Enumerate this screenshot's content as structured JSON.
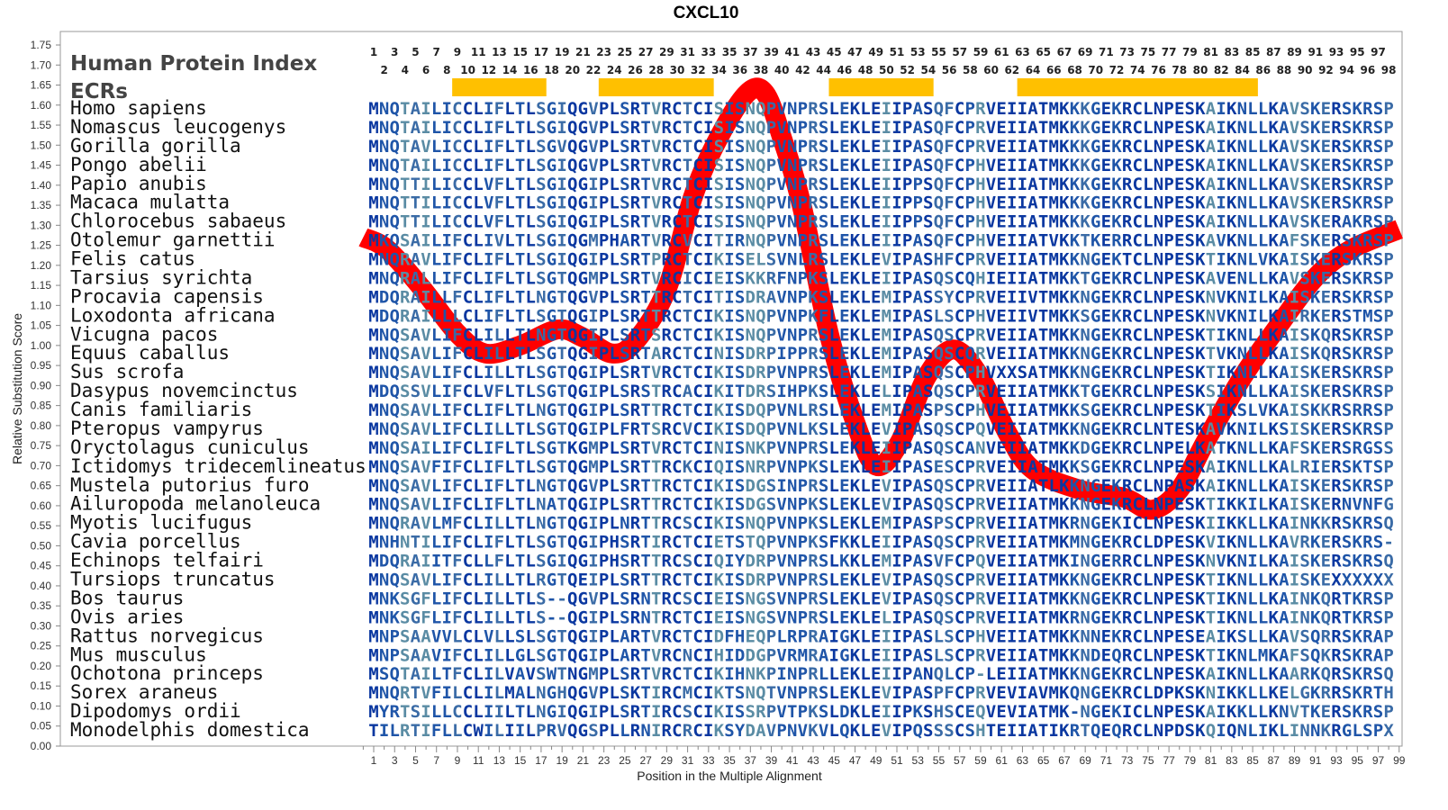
{
  "chart_data": {
    "type": "line",
    "title": "CXCL10",
    "xlabel": "Position in the Multiple Alignment",
    "ylabel": "Relative Substitution Score",
    "ylim": [
      0,
      1.75
    ],
    "xlim": [
      0,
      99
    ],
    "y_ticks": [
      "0.00",
      "0.05",
      "0.10",
      "0.15",
      "0.20",
      "0.25",
      "0.30",
      "0.35",
      "0.40",
      "0.45",
      "0.50",
      "0.55",
      "0.60",
      "0.65",
      "0.70",
      "0.75",
      "0.80",
      "0.85",
      "0.90",
      "0.95",
      "1.00",
      "1.05",
      "1.10",
      "1.15",
      "1.20",
      "1.25",
      "1.30",
      "1.35",
      "1.40",
      "1.45",
      "1.50",
      "1.55",
      "1.60",
      "1.65",
      "1.70",
      "1.75"
    ],
    "x_ticks_bottom": [
      1,
      3,
      5,
      7,
      9,
      11,
      13,
      15,
      17,
      19,
      21,
      23,
      25,
      27,
      29,
      31,
      33,
      35,
      37,
      39,
      41,
      43,
      45,
      47,
      49,
      51,
      53,
      55,
      57,
      59,
      61,
      63,
      65,
      67,
      69,
      71,
      73,
      75,
      77,
      79,
      81,
      83,
      85,
      87,
      89,
      91,
      93,
      95,
      97,
      99
    ],
    "x_ticks_top_odd": [
      1,
      3,
      5,
      7,
      9,
      11,
      13,
      15,
      17,
      19,
      21,
      23,
      25,
      27,
      29,
      31,
      33,
      35,
      37,
      39,
      41,
      43,
      45,
      47,
      49,
      51,
      53,
      55,
      57,
      59,
      61,
      63,
      65,
      67,
      69,
      71,
      73,
      75,
      77,
      79,
      81,
      83,
      85,
      87,
      89,
      91,
      93,
      95,
      97
    ],
    "x_ticks_top_even": [
      2,
      4,
      6,
      8,
      10,
      12,
      14,
      16,
      18,
      20,
      22,
      24,
      26,
      28,
      30,
      32,
      34,
      36,
      38,
      40,
      42,
      44,
      46,
      48,
      50,
      52,
      54,
      56,
      58,
      60,
      62,
      64,
      66,
      68,
      70,
      72,
      74,
      76,
      78,
      80,
      82,
      84,
      86,
      88,
      90,
      92,
      94,
      96,
      98
    ],
    "series": [
      {
        "name": "Relative Substitution Score",
        "color": "#ff0000",
        "x": [
          0,
          2.3,
          5.7,
          9,
          11.7,
          15,
          18.6,
          21,
          23.8,
          26,
          29,
          31.5,
          34,
          36.7,
          38.4,
          40,
          41.9,
          44.5,
          47,
          49,
          51.3,
          53.8,
          56.4,
          59,
          61.6,
          64,
          68.5,
          72.7,
          75.4,
          78,
          80.5,
          84,
          87.5,
          91,
          94.4,
          99
        ],
        "y": [
          1.27,
          1.24,
          1.14,
          1.03,
          0.98,
          1.0,
          1.04,
          1.02,
          0.98,
          1.01,
          1.14,
          1.37,
          1.52,
          1.63,
          1.63,
          1.52,
          1.35,
          1.03,
          0.81,
          0.7,
          0.76,
          0.92,
          0.99,
          0.92,
          0.78,
          0.69,
          0.64,
          0.62,
          0.59,
          0.64,
          0.76,
          0.92,
          1.05,
          1.17,
          1.24,
          1.29
        ]
      }
    ],
    "ecr_color": "#ffc000",
    "ecrs": [
      [
        9,
        17
      ],
      [
        23,
        33
      ],
      [
        45,
        54
      ],
      [
        63,
        85
      ]
    ],
    "grid": false
  },
  "labels": {
    "human_protein_index": "Human Protein Index",
    "ecrs": "ECRs"
  },
  "alignment": [
    {
      "species": "Homo sapiens",
      "seq": "MNQTAILICCLIFLTLSGIQGVPLSRTVRCTCISISNQPVNPRSLEKLEIIPASQFCPRVEIIATMKKKGEKRCLNPESKAIKNLLKAVSKERSKRSP"
    },
    {
      "species": "Nomascus leucogenys",
      "seq": "MNQTAILICCLIFLTLSGIQGVPLSRTVRCTCISISNQPVNPRSLEKLEIIPASQFCPRVEIIATMKKKGEKRCLNPESKAIKNLLKAVSKERSKRSP"
    },
    {
      "species": "Gorilla gorilla",
      "seq": "MNQTAVLICCLIFLTLSGVQGVPLSRTVRCTCISISNQPVNPRSLEKLEIIPASQFCPRVEIIATMKKKGEKRCLNPESKAIKNLLKAVSKERSKRSP"
    },
    {
      "species": "Pongo abelii",
      "seq": "MNQTAILICCLIFLTLSGIQGVPLSRTVRCTCISISNQPVNPRSLEKLEIIPASQFCPHVEIIATMKKKGEKRCLNPESKAIKNLLKAVSKERSKRSP"
    },
    {
      "species": "Papio anubis",
      "seq": "MNQTTILICCLVFLTLSGIQGIPLSRTVRCTCISISNQPVNPRSLEKLEIIPPSQFCPHVEIIATMKKKGEKRCLNPESKAIKNLLKAVSKERSKRSP"
    },
    {
      "species": "Macaca mulatta",
      "seq": "MNQTTILICCLVFLTLSGIQGIPLSRTVRCTCISISNQPVNPRSLEKLEIIPPSQFCPHVEIIATMKKKGEKRCLNPESKAIKNLLKAVSKERSKRSP"
    },
    {
      "species": "Chlorocebus sabaeus",
      "seq": "MNQTTILICCLVFLTLSGIQGIPLSRTVRCTCISISNQPVNPRSLEKLEIIPPSQFCPHVEIIATMKKKGEKRCLNPESKAIKNLLKAVSKERAKRSP"
    },
    {
      "species": "Otolemur garnettii",
      "seq": "MKQSAILIFCLIVLTLSGIQGMPHARTVRCVCITIRNQPVNPRSLEKLEIIPASQFCPHVEIIATVKKTKERRCLNPESKAVKNLLKAFSKERSKRSP"
    },
    {
      "species": "Felis catus",
      "seq": "MNQRAVLIFCLIFLTLSGIQGIPLSRTPRCTCIKISELSVNLRSLEKLEVIPASHFCPRVEIIATMKKNGEKTCLNPESKTIKNLVKAISKERSKRSP"
    },
    {
      "species": "Tarsius syrichta",
      "seq": "MNQRALLIFCLIFLTLSGTQGMPLSRTVRCICIEISKKRFNPKSLEKLEIIPASQSCQHIEIIATMKKTGEKRCLNPESKAVENLLKAVSKERSKRSP"
    },
    {
      "species": "Procavia capensis",
      "seq": "MDQRAILLFCLIFLTLNGTQGVPLSRTTRCTCITISDRAVNPKSLEKLEMIPASSYCPRVEIIVTMKKNGEKRCLNPESKNVKNILKAISKERSKRSP"
    },
    {
      "species": "Loxodonta africana",
      "seq": "MDQRAILLLCLIFLTLSGTQGIPLSRTTRCTCIKISNQPVNPKFLEKLEMIPASLSCPHVEIIVTMKKSGEKRCLNPESKNVKNILKAIRKERSTMSP"
    },
    {
      "species": "Vicugna pacos",
      "seq": "MNQSAVLIFCLILLTLNGTQGIPLSRTSRCTCIKISNQPVNPRSLEKLEMIPASQSCPRVEIIATMKKNGEKRCLNPESKTIKNLLKAISKQRSKRSP"
    },
    {
      "species": "Equus caballus",
      "seq": "MNQSAVLIFCLILLTLSGTQGIPLSRTARCTCINISDRPIPPRSLEKLEMIPASQSCQRVEIIATMKKNGEKRCLNPESKTVKNLLKAISKQRSKRSP"
    },
    {
      "species": "Sus scrofa",
      "seq": "MNQSAVLIFCLILLTLSGTQGIPLSRTVRCTCIKISDRPVNPRSLEKLEMIPASQSCPHVXXSATMKKNGEKRCLNPESKTIKNLLKAISKERSKRSP"
    },
    {
      "species": "Dasypus novemcinctus",
      "seq": "MDQSSVLIFCLVFLTLSGTQGIPLSRSTRCACIKITDRSIHPKSLEKLELIPASQSCPRVEIIATMKKTGEKRCLNPESKSIKNLLKAISKERSKRSP"
    },
    {
      "species": "Canis familiaris",
      "seq": "MNQSAVLIFCLIFLTLNGTQGIPLSRTTRCTCIKISDQPVNLRSLEKLEMIPASPSCPHVEIIATMKKSGEKRCLNPESKTIKSLVKAISKKRSRRSP"
    },
    {
      "species": "Pteropus vampyrus",
      "seq": "MNQSAVLIFCLILLTLSGTQGIPLFRTSRCVCIKISDQPVNLKSLEKLEVIPASQSCPQVEIIATMKKNGEKRCLNTESKAVKNILKSISKERSKRSP"
    },
    {
      "species": "Oryctolagus cuniculus",
      "seq": "MNQSAILIFCLIFLTLSGTKGMPLSRTVRCTCINISNKPVNPRSLEKLEIIPASQSCANVEIIATMKKDGEKRCLNPELKATKNLLKAFSKERSRGSS"
    },
    {
      "species": "Ictidomys tridecemlineatus",
      "seq": "MNQSAVFIFCLIFLTLSGTQGMPLSRTTRCKCIQISNRPVNPKSLEKLEIIPASESCPRVEIIATMKKSGEKRCLNPESKAIKNLLKALRIERSKTSP"
    },
    {
      "species": "Mustela putorius furo",
      "seq": "MNQSAVLIFCLIFLTLNGTQGVPLSRTTRCTCIKISDGSINPRSLEKLEVIPASQSCPRVEIIATLKKNGEKRCLNPASKAIKNLLKAISKERSKRSP"
    },
    {
      "species": "Ailuropoda melanoleuca",
      "seq": "MNQSAVLIFCLIFLTLNATQGIPLSRTTRCTCIKISDGSVNPKSLEKLEVIPASQSCPRVEIIATMKKNGEKRCLNPESKTIKKILKAISKERNVNFG"
    },
    {
      "species": "Myotis lucifugus",
      "seq": "MNQRAVLMFCLILLTLNGTQGIPLNRTTRCSCIKISNQPVNPKSLEKLEMIPASPSCPRVEIIATMKRNGEKICLNPESKIIKKLLKAINKKRSKRSQ"
    },
    {
      "species": "Cavia porcellus",
      "seq": "MNHNTILIFCLIFLTLSGTQGIPHSRTIRCTCIETSTQPVNPKSFKKLEIIPASQSCPRVEIIATMKMNGEKRCLDPESKVIKNLLKAVRKERSKRS-"
    },
    {
      "species": "Echinops telfairi",
      "seq": "MDQRAIITFCLLFLTLSGIQGIPHSRTTRCSCIQIYDRPVNPRSLKKLEMIPASVFCPQVEIIATMKINGERRCLNPESKNVKNILKAISKERSKRSQ"
    },
    {
      "species": "Tursiops truncatus",
      "seq": "MNQSAVLIFCLILLTLRGTQEIPLSRTTRCTCIKISDRPVNPRSLEKLEVIPASQSCPRVEIIATMKKNGEKRCLNPESKTIKNLLKAISKEXXXXXX"
    },
    {
      "species": "Bos taurus",
      "seq": "MNKSGFLIFCLILLTLS--QGVPLSRNTRCSCIEISNGSVNPRSLEKLEVIPASQSCPRVEIIATMKKNGEKRCLNPESKTIKNLLKAINKQRTKRSP"
    },
    {
      "species": "Ovis aries",
      "seq": "MNKSGFLIFCLILLTLS--QGIPLSRNTRCTCIEISNGSVNPRSLEKLELIPASQSCPRVEIIATMKRNGEKRCLNPESKTIKNLLKAINKQRTKRSP"
    },
    {
      "species": "Rattus norvegicus",
      "seq": "MNPSAAVVLCLVLLSLSGTQGIPLARTVRCTCIDFHEQPLRPRAIGKLEIIPASLSCPHVEIIATMKKNNEKRCLNPESEAIKSLLKAVSQRRSKRAP"
    },
    {
      "species": "Mus musculus",
      "seq": "MNPSAAVIFCLILLGLSGTQGIPLARTVRCNCIHIDDGPVRMRAIGKLEIIPASLSCPRVEIIATMKKNDEQRCLNPESKTIKNLMKAFSQKRSKRAP"
    },
    {
      "species": "Ochotona princeps",
      "seq": "MSQTAILTFCLILVAVSWTNGMPLSRTVRCTCIKIHNKPINPRLLEKLEIIPANQLCP-LEIIATMKKNGEKRCLNPESKAIKNLLKAARKQRSKRSQ"
    },
    {
      "species": "Sorex araneus",
      "seq": "MNQRTVFILCLILMALNGHQGVPLSKTIRCMCIKTSNQTVNPRSLEKLEVIPASPFCPRVEVIAVMKQNGEKRCLDPKSKNIKKLLKELGKRRSKRTH"
    },
    {
      "species": "Dipodomys ordii",
      "seq": "MYRTSILLCCLIILTLNGIQGIPLSRTIRCSCIKISSRPVTPKSLDKLEIIPKSHSCEQVEVIATMK-NGEKICLNPESKAIKKLLKNVTKERSKRSP"
    },
    {
      "species": "Monodelphis domestica",
      "seq": "TILRTIFLLCWILIILPRVQGSPLLRNIRCRCIKSYDAVPNVKVLQKLEVIPQSSSCSHTEIIATIKRTQEQRCLNPDSKQIQNLIKLINNKRGLSPX"
    }
  ],
  "conservation_colors": [
    "#0a37a0",
    "#1f55a8",
    "#3a6ba6",
    "#5a8ca4",
    "#86bb9c"
  ]
}
